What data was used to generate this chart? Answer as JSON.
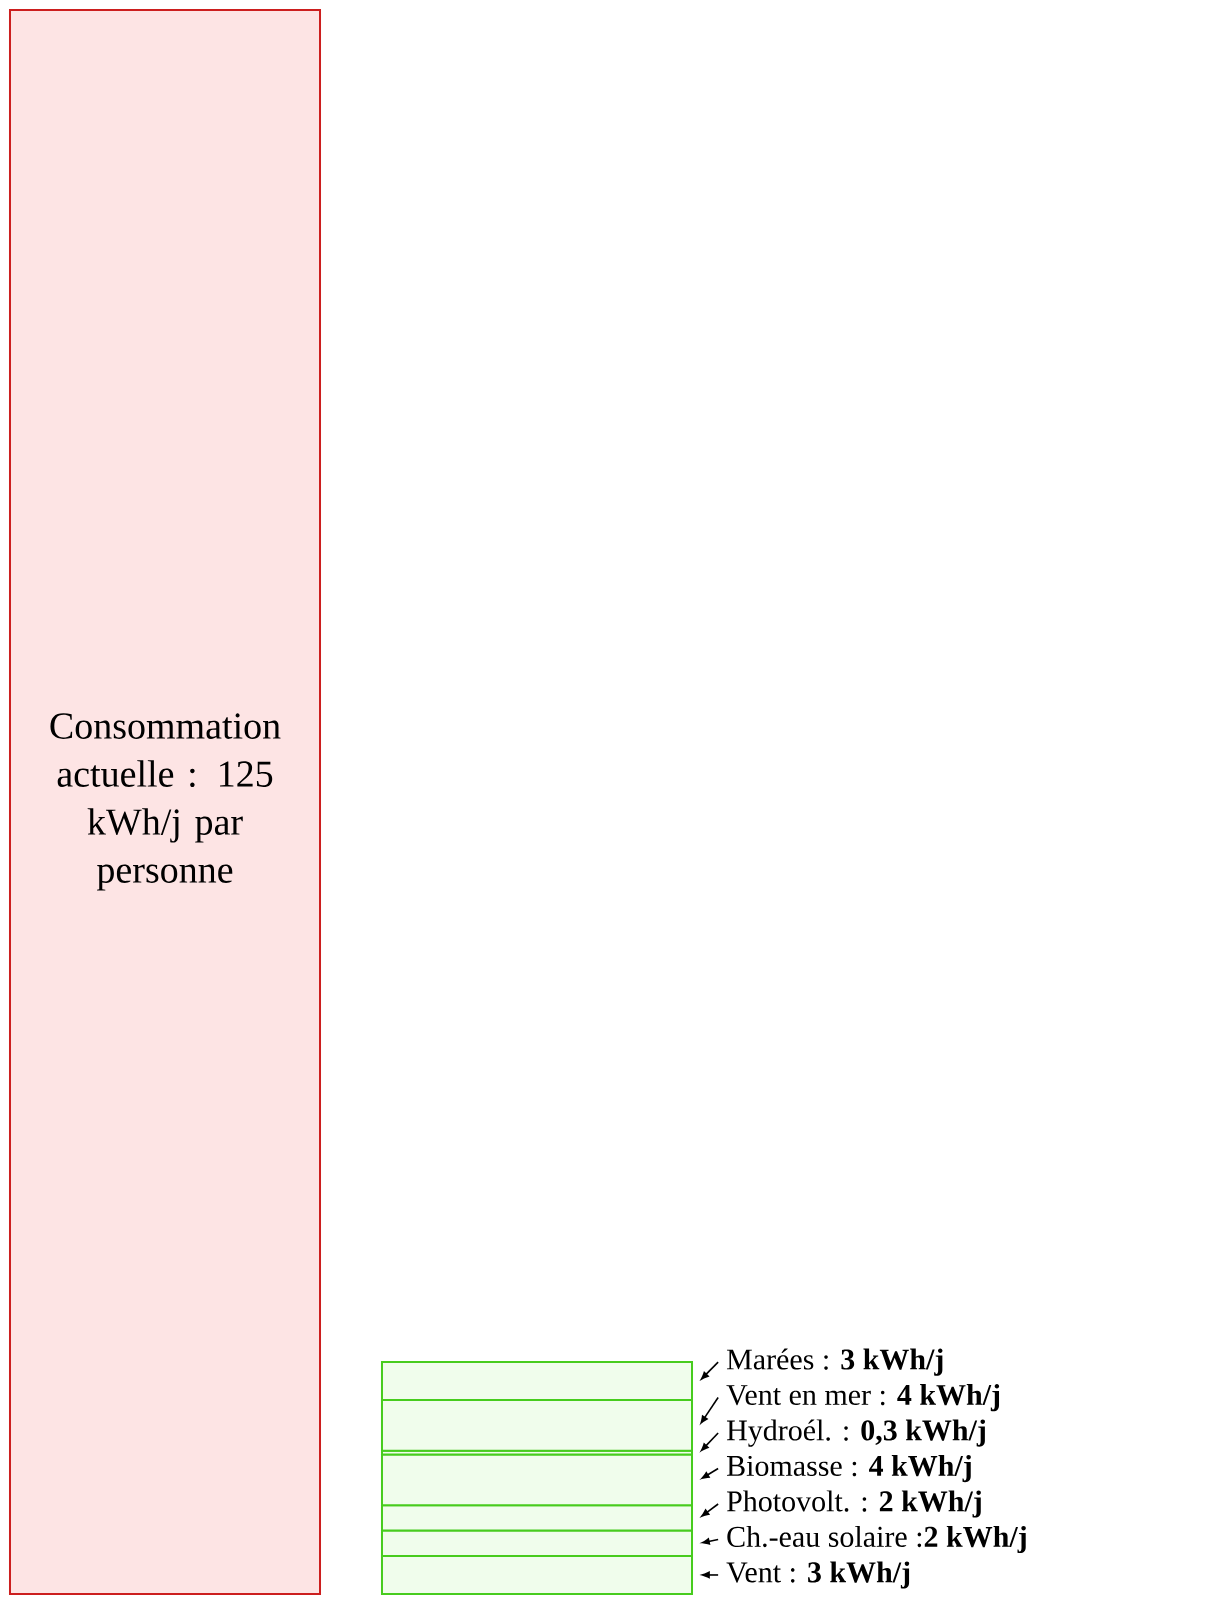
{
  "chart_data": {
    "type": "bar",
    "stacked": true,
    "categories": [
      null,
      null
    ],
    "ylim": [
      0,
      125
    ],
    "series": [
      {
        "color": "#fde4e4",
        "values": [
          125,
          null
        ],
        "value_labels": [
          "Consommation actuelle : 125 kWh/j par personne",
          null
        ]
      },
      {
        "color": "#f0fdec",
        "values": [
          null,
          3
        ],
        "value_labels": [
          null,
          "Vent : **3 kWh/j**"
        ]
      },
      {
        "color": "#f0fdec",
        "values": [
          null,
          2
        ],
        "value_labels": [
          null,
          "Ch.-eau solaire :**2 kWh/j**"
        ]
      },
      {
        "color": "#f0fdec",
        "values": [
          null,
          2
        ],
        "value_labels": [
          null,
          "Photovolt. : **2 kWh/j**"
        ]
      },
      {
        "color": "#f0fdec",
        "values": [
          null,
          4
        ],
        "value_labels": [
          null,
          "Biomasse : **4 kWh/j**"
        ]
      },
      {
        "color": "#f0fdec",
        "values": [
          null,
          0.3
        ],
        "value_labels": [
          null,
          "Hydroél. : **0,3 kWh/j**"
        ]
      },
      {
        "color": "#f0fdec",
        "values": [
          null,
          4
        ],
        "value_labels": [
          null,
          "Vent en mer : **4 kWh/j**"
        ]
      },
      {
        "color": "#f0fdec",
        "values": [
          null,
          3
        ],
        "value_labels": [
          null,
          "Marées : **3 kWh/j**"
        ]
      }
    ]
  }
}
